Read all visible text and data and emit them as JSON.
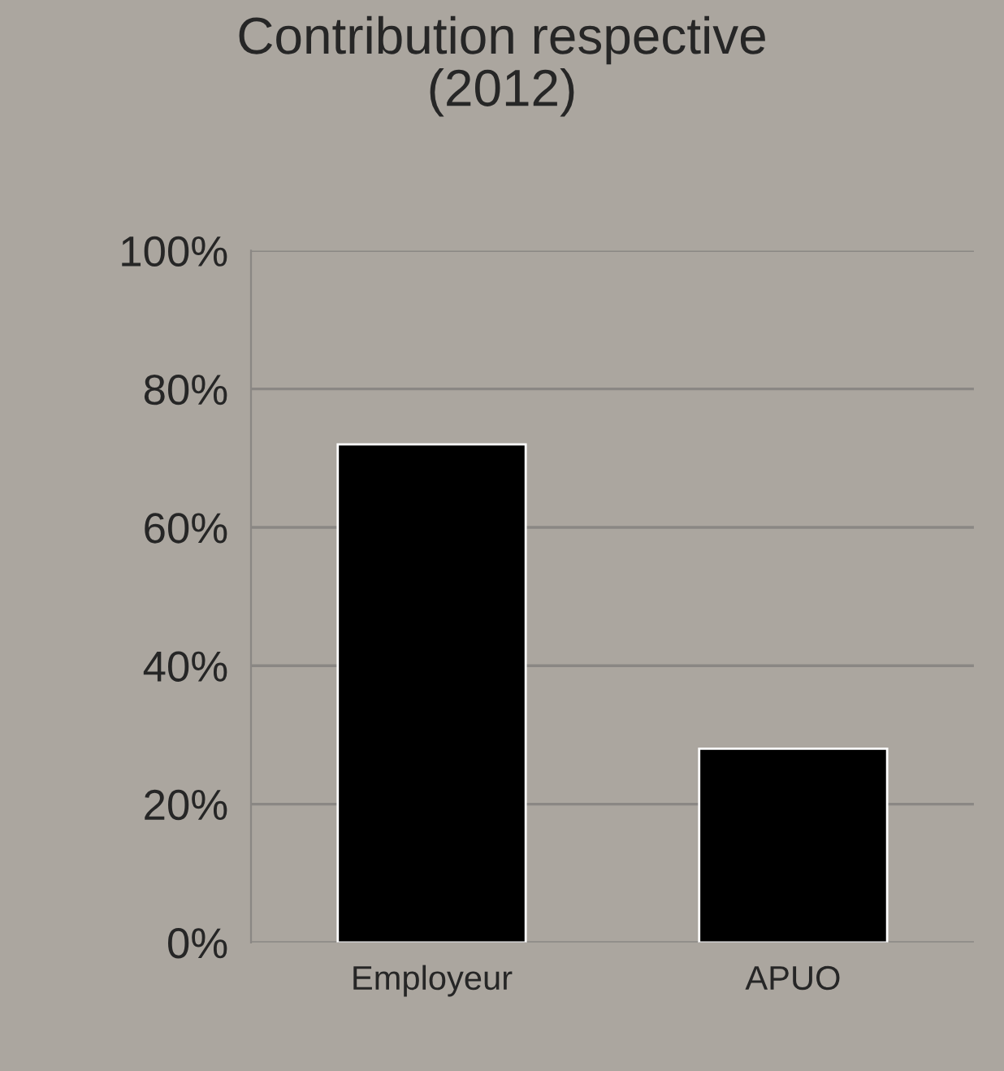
{
  "chart_data": {
    "type": "bar",
    "title": "Contribution respective\n(2012)",
    "categories": [
      "Employeur",
      "APUO"
    ],
    "values": [
      72,
      28
    ],
    "color": "#000000",
    "ylim": [
      0,
      100
    ],
    "yticks": [
      {
        "value": 0,
        "label": "0%"
      },
      {
        "value": 20,
        "label": "20%"
      },
      {
        "value": 40,
        "label": "40%"
      },
      {
        "value": 60,
        "label": "60%"
      },
      {
        "value": 80,
        "label": "80%"
      },
      {
        "value": 100,
        "label": "100%"
      }
    ],
    "grid": "y"
  }
}
